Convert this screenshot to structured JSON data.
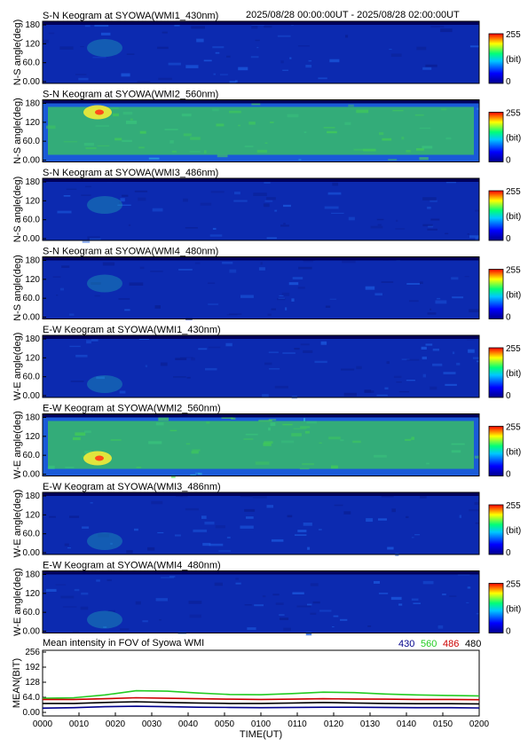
{
  "header": {
    "time_range": "2025/08/28 00:00:00UT - 2025/08/28 02:00:00UT"
  },
  "colorbar": {
    "max_label": "255",
    "unit_label": "(bit)",
    "min_label": "0",
    "colors": [
      "#00008c",
      "#0000ff",
      "#00c8ff",
      "#00ff78",
      "#ffff00",
      "#ff0000"
    ]
  },
  "keograms": [
    {
      "title": "S-N Keogram at SYOWA(WMI1_430nm)",
      "ylabel": "N-S angle(deg)",
      "yticks": [
        "180",
        "120",
        "60.0",
        "0.00"
      ],
      "filter": "430",
      "activity": 0.15
    },
    {
      "title": "S-N Keogram at SYOWA(WMI2_560nm)",
      "ylabel": "N-S angle(deg)",
      "yticks": [
        "180",
        "120",
        "60.0",
        "0.00"
      ],
      "filter": "560",
      "activity": 0.9
    },
    {
      "title": "S-N Keogram at SYOWA(WMI3_486nm)",
      "ylabel": "N-S angle(deg)",
      "yticks": [
        "180",
        "120",
        "60.0",
        "0.00"
      ],
      "filter": "486",
      "activity": 0.3
    },
    {
      "title": "S-N Keogram at SYOWA(WMI4_480nm)",
      "ylabel": "N-S angle(deg)",
      "yticks": [
        "180",
        "120",
        "60.0",
        "0.00"
      ],
      "filter": "480",
      "activity": 0.25
    },
    {
      "title": "E-W Keogram at SYOWA(WMI1_430nm)",
      "ylabel": "W-E angle(deg)",
      "yticks": [
        "180",
        "120",
        "60.0",
        "0.00"
      ],
      "filter": "430",
      "activity": 0.15
    },
    {
      "title": "E-W Keogram at SYOWA(WMI2_560nm)",
      "ylabel": "W-E angle(deg)",
      "yticks": [
        "180",
        "120",
        "60.0",
        "0.00"
      ],
      "filter": "560",
      "activity": 1.0
    },
    {
      "title": "E-W Keogram at SYOWA(WMI3_486nm)",
      "ylabel": "W-E angle(deg)",
      "yticks": [
        "180",
        "120",
        "60.0",
        "0.00"
      ],
      "filter": "486",
      "activity": 0.3
    },
    {
      "title": "E-W Keogram at SYOWA(WMI4_480nm)",
      "ylabel": "W-E angle(deg)",
      "yticks": [
        "180",
        "120",
        "60.0",
        "0.00"
      ],
      "filter": "480",
      "activity": 0.25
    }
  ],
  "mean_panel": {
    "title": "Mean intensity in FOV of Syowa WMI",
    "ylabel": "MEAN(BIT)",
    "yticks": [
      "256",
      "192",
      "128",
      "64.0",
      "0.00"
    ],
    "legend": [
      {
        "label": "430",
        "color": "#00008b"
      },
      {
        "label": "560",
        "color": "#22cc22"
      },
      {
        "label": "486",
        "color": "#cc0000"
      },
      {
        "label": "480",
        "color": "#000000"
      }
    ]
  },
  "xaxis": {
    "label": "TIME(UT)",
    "ticks": [
      "0000",
      "0010",
      "0020",
      "0030",
      "0040",
      "0050",
      "0100",
      "0110",
      "0120",
      "0130",
      "0140",
      "0150",
      "0200"
    ]
  },
  "chart_data": {
    "type": "line",
    "title": "Mean intensity in FOV of Syowa WMI",
    "xlabel": "TIME(UT)",
    "ylabel": "MEAN(BIT)",
    "ylim": [
      0,
      256
    ],
    "x": [
      "0000",
      "0005",
      "0010",
      "0015",
      "0020",
      "0030",
      "0040",
      "0050",
      "0100",
      "0110",
      "0120",
      "0130",
      "0140",
      "0150",
      "0200"
    ],
    "series": [
      {
        "name": "430",
        "color": "#00008b",
        "values": [
          18,
          20,
          24,
          26,
          24,
          22,
          21,
          20,
          21,
          22,
          22,
          21,
          20,
          20,
          19
        ]
      },
      {
        "name": "560",
        "color": "#22cc22",
        "values": [
          60,
          62,
          74,
          92,
          90,
          82,
          76,
          75,
          80,
          86,
          84,
          78,
          74,
          72,
          70
        ]
      },
      {
        "name": "486",
        "color": "#cc0000",
        "values": [
          55,
          55,
          58,
          62,
          60,
          58,
          56,
          55,
          56,
          58,
          57,
          56,
          55,
          55,
          54
        ]
      },
      {
        "name": "480",
        "color": "#000000",
        "values": [
          38,
          38,
          42,
          45,
          42,
          40,
          38,
          38,
          40,
          42,
          40,
          38,
          37,
          37,
          36
        ]
      }
    ]
  }
}
